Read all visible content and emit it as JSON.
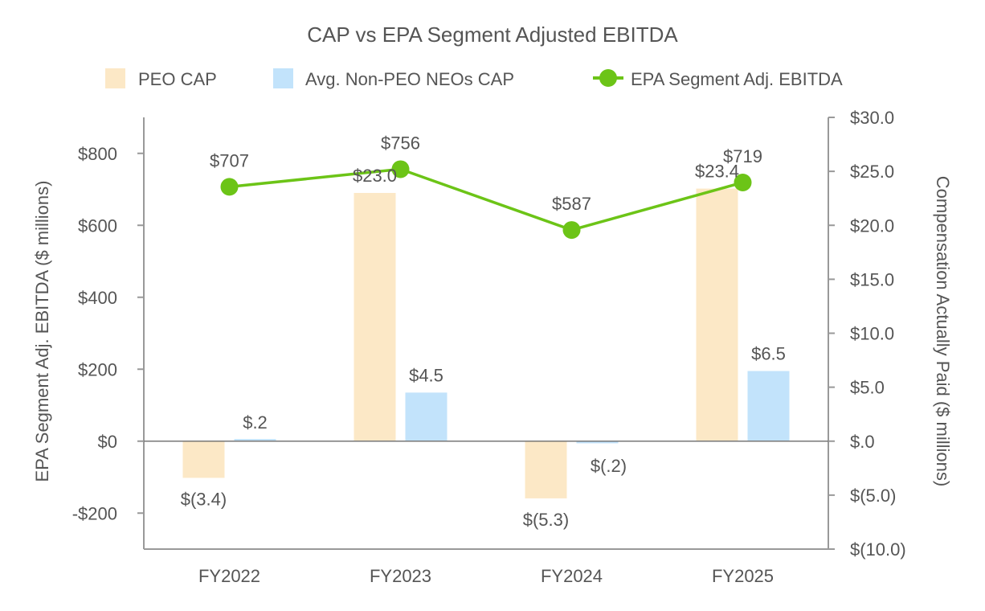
{
  "chart_data": {
    "type": "bar",
    "title": "CAP vs EPA Segment Adjusted EBITDA",
    "categories": [
      "FY2022",
      "FY2023",
      "FY2024",
      "FY2025"
    ],
    "y_left": {
      "label": "EPA Segment Adj. EBITDA ($ millions)",
      "range": [
        -300,
        900
      ],
      "ticks": [
        -200,
        0,
        200,
        400,
        600,
        800
      ],
      "tick_labels": [
        "-$200",
        "$0",
        "$200",
        "$400",
        "$600",
        "$800"
      ]
    },
    "y_right": {
      "label": "Compensation Actually Paid ($ millions)",
      "range": [
        -10,
        30
      ],
      "ticks": [
        -10,
        -5,
        0,
        5,
        10,
        15,
        20,
        25,
        30
      ],
      "tick_labels": [
        "$(10.0)",
        "$(5.0)",
        "$.0",
        "$5.0",
        "$10.0",
        "$15.0",
        "$20.0",
        "$25.0",
        "$30.0"
      ]
    },
    "series": [
      {
        "name": "PEO CAP",
        "kind": "bar",
        "axis": "right",
        "color": "#FCE8C6",
        "values": [
          -3.4,
          23.0,
          -5.3,
          23.4
        ],
        "labels": [
          "$(3.4)",
          "$23.0",
          "$(5.3)",
          "$23.4"
        ]
      },
      {
        "name": "Avg. Non-PEO NEOs CAP",
        "kind": "bar",
        "axis": "right",
        "color": "#C2E3FB",
        "values": [
          0.2,
          4.5,
          -0.2,
          6.5
        ],
        "labels": [
          "$.2",
          "$4.5",
          "$(.2)",
          "$6.5"
        ]
      },
      {
        "name": "EPA Segment Adj. EBITDA",
        "kind": "line",
        "axis": "left",
        "color": "#6CC417",
        "values": [
          707,
          756,
          587,
          719
        ],
        "labels": [
          "$707",
          "$756",
          "$587",
          "$719"
        ]
      }
    ],
    "legend_position": "top-center",
    "grid": false
  }
}
